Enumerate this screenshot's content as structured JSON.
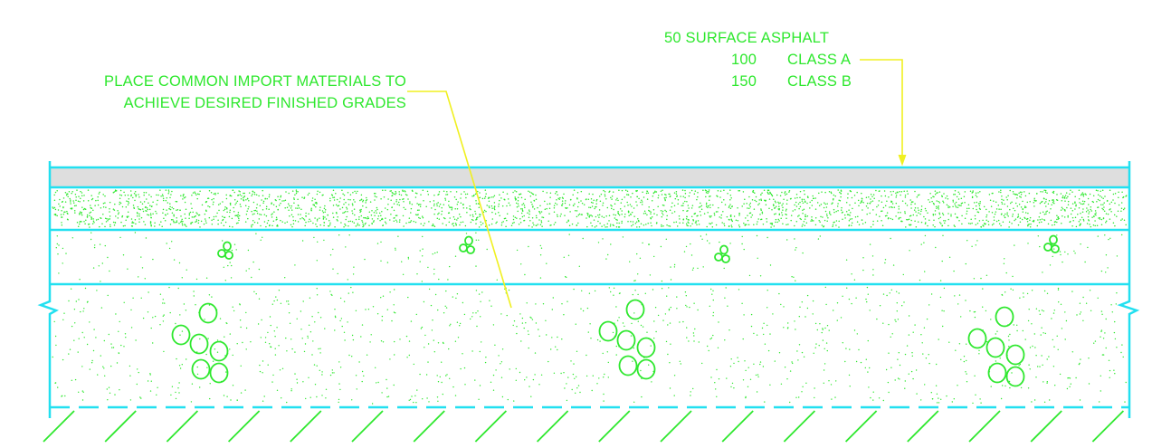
{
  "labels": {
    "fill_line1": "PLACE COMMON IMPORT MATERIALS TO",
    "fill_line2": "ACHIEVE DESIRED FINISHED GRADES",
    "asphalt_line1": "50 SURFACE ASPHALT",
    "classA_num": "100",
    "classA_text": "CLASS A",
    "classB_num": "150",
    "classB_text": "CLASS B"
  },
  "colors": {
    "outline": "#22e0f0",
    "text": "#2ee82e",
    "leader": "#f0f020",
    "asphalt_fill": "#dedede",
    "speckle": "#2ee82e"
  }
}
